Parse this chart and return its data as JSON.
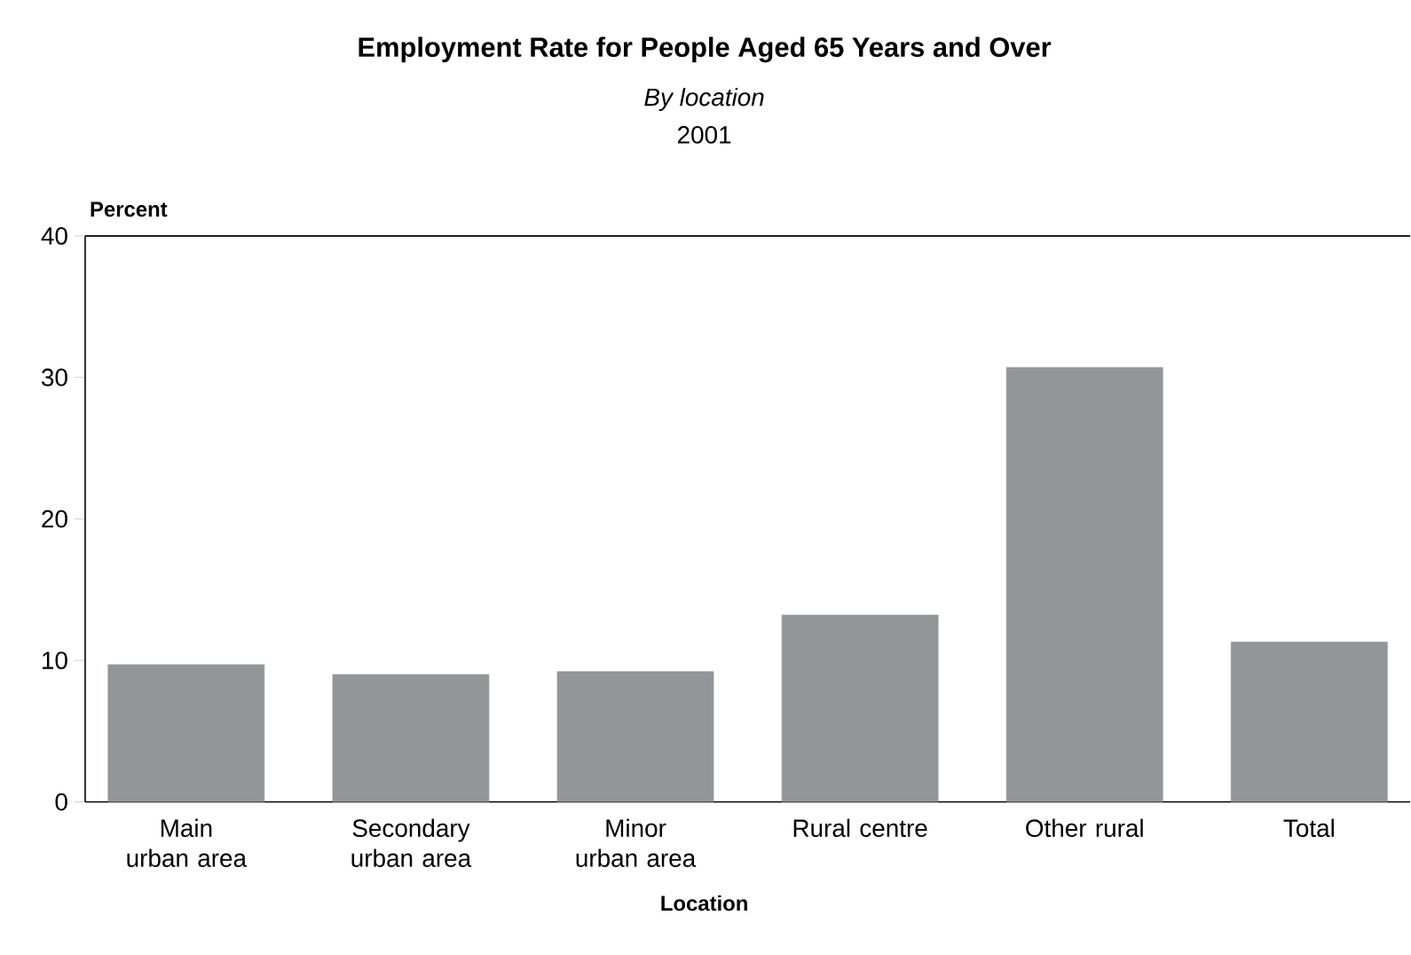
{
  "chart_data": {
    "type": "bar",
    "title": "Employment Rate for People Aged 65 Years and Over",
    "subtitle": "*By location*",
    "annotations": [
      "2001"
    ],
    "xlabel": "Location",
    "ylabel": "Percent",
    "categories": [
      "Main urban area",
      "Secondary urban area",
      "Minor urban area",
      "Rural centre",
      "Other rural",
      "Total"
    ],
    "values": [
      9.7,
      9.0,
      9.2,
      13.2,
      30.7,
      11.3
    ],
    "color": "#939599",
    "ylim": [
      0,
      40
    ],
    "yticks": [
      0,
      10,
      20,
      30,
      40
    ]
  }
}
